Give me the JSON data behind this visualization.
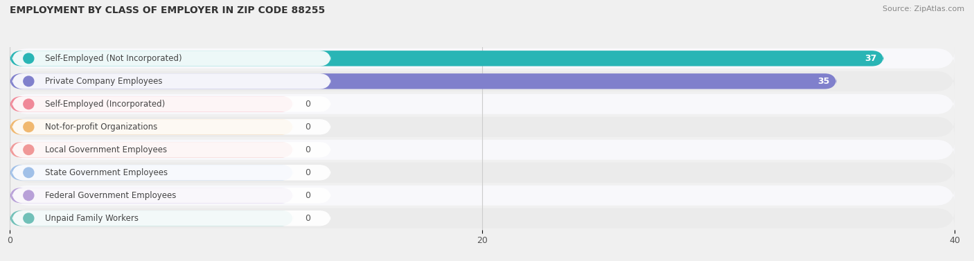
{
  "title": "EMPLOYMENT BY CLASS OF EMPLOYER IN ZIP CODE 88255",
  "source": "Source: ZipAtlas.com",
  "categories": [
    "Self-Employed (Not Incorporated)",
    "Private Company Employees",
    "Self-Employed (Incorporated)",
    "Not-for-profit Organizations",
    "Local Government Employees",
    "State Government Employees",
    "Federal Government Employees",
    "Unpaid Family Workers"
  ],
  "values": [
    37,
    35,
    0,
    0,
    0,
    0,
    0,
    0
  ],
  "bar_colors": [
    "#29b5b5",
    "#8080cc",
    "#f08898",
    "#f0b870",
    "#f09898",
    "#a0c0e8",
    "#b8a0d8",
    "#70c0b8"
  ],
  "label_bg_colors": [
    "#e8f8f8",
    "#e8e8f8",
    "#fce8ec",
    "#fdf0e0",
    "#fce8e8",
    "#e0eef8",
    "#ede8f8",
    "#e0f4f2"
  ],
  "row_alt_colors": [
    "#f8f8fb",
    "#eeeeee"
  ],
  "xlim": [
    0,
    40
  ],
  "xticks": [
    0,
    20,
    40
  ],
  "background_color": "#f0f0f0",
  "title_fontsize": 10,
  "source_fontsize": 8,
  "bar_label_fontsize": 9,
  "axis_label_fontsize": 9,
  "bar_height": 0.68,
  "zero_bar_width": 12
}
